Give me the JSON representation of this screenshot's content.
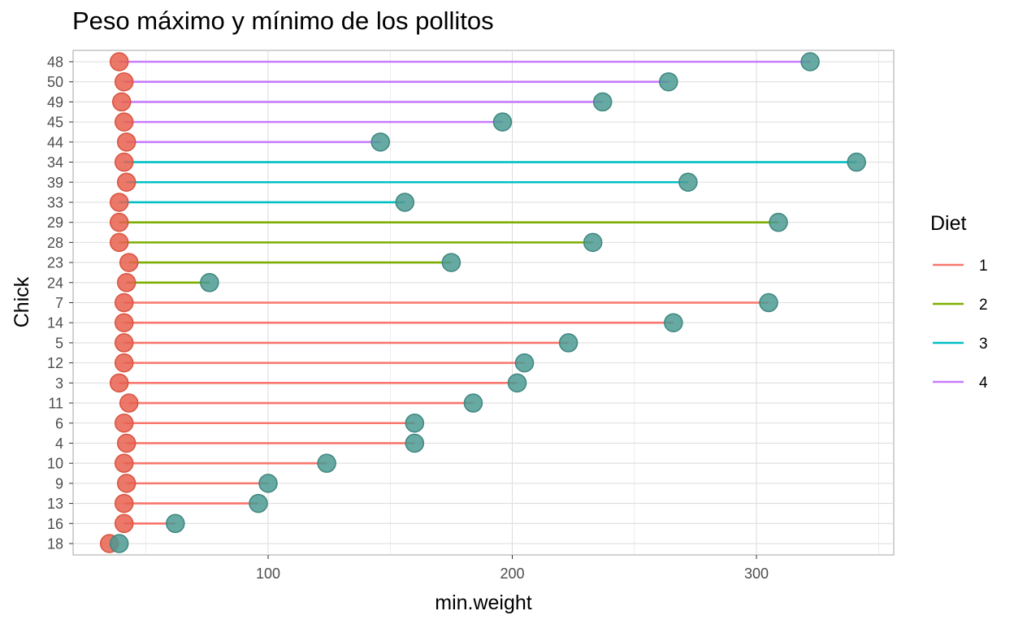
{
  "chart_data": {
    "type": "lollipop",
    "title": "Peso máximo y mínimo de los pollitos",
    "xlabel": "min.weight",
    "ylabel": "Chick",
    "xlim": [
      21,
      351
    ],
    "x_ticks": [
      100,
      200,
      300
    ],
    "grid": true,
    "legend": {
      "title": "Diet",
      "placement": "right",
      "items": [
        {
          "label": "1",
          "color": "#F8766D"
        },
        {
          "label": "2",
          "color": "#7CAE00"
        },
        {
          "label": "3",
          "color": "#00BFC4"
        },
        {
          "label": "4",
          "color": "#C77CFF"
        }
      ]
    },
    "min_point_color": "#E8604F",
    "max_point_color": "#4C9A93",
    "rows": [
      {
        "chick": "48",
        "diet": "4",
        "min": 39,
        "max": 322
      },
      {
        "chick": "50",
        "diet": "4",
        "min": 41,
        "max": 264
      },
      {
        "chick": "49",
        "diet": "4",
        "min": 40,
        "max": 237
      },
      {
        "chick": "45",
        "diet": "4",
        "min": 41,
        "max": 196
      },
      {
        "chick": "44",
        "diet": "4",
        "min": 42,
        "max": 146
      },
      {
        "chick": "34",
        "diet": "3",
        "min": 41,
        "max": 341
      },
      {
        "chick": "39",
        "diet": "3",
        "min": 42,
        "max": 272
      },
      {
        "chick": "33",
        "diet": "3",
        "min": 39,
        "max": 156
      },
      {
        "chick": "29",
        "diet": "2",
        "min": 39,
        "max": 309
      },
      {
        "chick": "28",
        "diet": "2",
        "min": 39,
        "max": 233
      },
      {
        "chick": "23",
        "diet": "2",
        "min": 43,
        "max": 175
      },
      {
        "chick": "24",
        "diet": "2",
        "min": 42,
        "max": 76
      },
      {
        "chick": "7",
        "diet": "1",
        "min": 41,
        "max": 305
      },
      {
        "chick": "14",
        "diet": "1",
        "min": 41,
        "max": 266
      },
      {
        "chick": "5",
        "diet": "1",
        "min": 41,
        "max": 223
      },
      {
        "chick": "12",
        "diet": "1",
        "min": 41,
        "max": 205
      },
      {
        "chick": "3",
        "diet": "1",
        "min": 39,
        "max": 202
      },
      {
        "chick": "11",
        "diet": "1",
        "min": 43,
        "max": 184
      },
      {
        "chick": "6",
        "diet": "1",
        "min": 41,
        "max": 160
      },
      {
        "chick": "4",
        "diet": "1",
        "min": 42,
        "max": 160
      },
      {
        "chick": "10",
        "diet": "1",
        "min": 41,
        "max": 124
      },
      {
        "chick": "9",
        "diet": "1",
        "min": 42,
        "max": 100
      },
      {
        "chick": "13",
        "diet": "1",
        "min": 41,
        "max": 96
      },
      {
        "chick": "16",
        "diet": "1",
        "min": 41,
        "max": 62
      },
      {
        "chick": "18",
        "diet": "1",
        "min": 35,
        "max": 39
      }
    ]
  }
}
